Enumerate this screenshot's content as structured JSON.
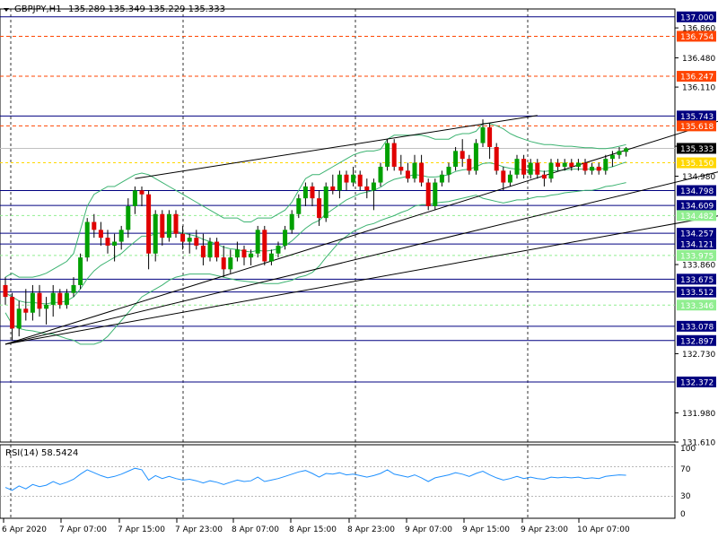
{
  "header": {
    "menu_icon": "triangle-down-icon",
    "symbol": "GBPJPY,H1",
    "ohlc": "135.289 135.349 135.229 135.333"
  },
  "rsi": {
    "label": "RSI(14) 58.5424",
    "period": 14,
    "value": 58.5424,
    "levels": [
      70,
      30
    ],
    "axis_labels": [
      "100",
      "70",
      "30",
      "0"
    ],
    "color": "#1e90ff"
  },
  "chart_data": {
    "type": "candlestick",
    "symbol": "GBPJPY",
    "timeframe": "H1",
    "ylim": [
      131.61,
      137.1
    ],
    "price_axis_labels": [
      "136.860",
      "136.480",
      "136.110",
      "135.360",
      "134.980",
      "133.860",
      "132.730",
      "131.980",
      "131.610"
    ],
    "time_labels": [
      "6 Apr 2020",
      "7 Apr 07:00",
      "7 Apr 15:00",
      "7 Apr 23:00",
      "8 Apr 07:00",
      "8 Apr 15:00",
      "8 Apr 23:00",
      "9 Apr 07:00",
      "9 Apr 15:00",
      "9 Apr 23:00",
      "10 Apr 07:00"
    ],
    "current_price": {
      "value": 135.333,
      "label": "135.333"
    },
    "blue_levels": [
      {
        "value": 137.0,
        "label": "137.000"
      },
      {
        "value": 135.743,
        "label": "135.743"
      },
      {
        "value": 134.798,
        "label": "134.798"
      },
      {
        "value": 134.609,
        "label": "134.609"
      },
      {
        "value": 134.257,
        "label": "134.257"
      },
      {
        "value": 134.121,
        "label": "134.121"
      },
      {
        "value": 133.675,
        "label": "133.675"
      },
      {
        "value": 133.512,
        "label": "133.512"
      },
      {
        "value": 133.078,
        "label": "133.078"
      },
      {
        "value": 132.897,
        "label": "132.897"
      },
      {
        "value": 132.372,
        "label": "132.372"
      }
    ],
    "red_levels": [
      {
        "value": 136.754,
        "label": "136.754"
      },
      {
        "value": 136.247,
        "label": "136.247"
      },
      {
        "value": 135.618,
        "label": "135.618"
      }
    ],
    "yellow_level": {
      "value": 135.15,
      "label": "135.150"
    },
    "green_levels": [
      {
        "value": 134.482,
        "label": "134.482"
      },
      {
        "value": 133.975,
        "label": "133.975"
      },
      {
        "value": 133.346,
        "label": "133.346"
      }
    ],
    "colors": {
      "bull": "#00a000",
      "bear": "#e00000",
      "blue_level": "#000080",
      "red_level": "#ff4500",
      "yellow_level": "#ffd700",
      "green_level": "#90ee90",
      "bollinger": "#3cb371",
      "grid": "#000000"
    },
    "candles": [
      [
        133.6,
        133.7,
        133.35,
        133.45
      ],
      [
        133.45,
        133.5,
        132.9,
        133.05
      ],
      [
        133.05,
        133.4,
        132.95,
        133.3
      ],
      [
        133.3,
        133.55,
        133.15,
        133.25
      ],
      [
        133.25,
        133.6,
        133.15,
        133.5
      ],
      [
        133.5,
        133.6,
        133.2,
        133.3
      ],
      [
        133.3,
        133.45,
        133.1,
        133.35
      ],
      [
        133.35,
        133.6,
        133.2,
        133.5
      ],
      [
        133.5,
        133.55,
        133.3,
        133.35
      ],
      [
        133.35,
        133.55,
        133.3,
        133.5
      ],
      [
        133.5,
        133.7,
        133.45,
        133.6
      ],
      [
        133.6,
        134.0,
        133.55,
        133.95
      ],
      [
        133.95,
        134.45,
        133.9,
        134.4
      ],
      [
        134.4,
        134.5,
        134.2,
        134.3
      ],
      [
        134.3,
        134.4,
        134.1,
        134.2
      ],
      [
        134.2,
        134.3,
        134.0,
        134.1
      ],
      [
        134.1,
        134.25,
        133.9,
        134.15
      ],
      [
        134.15,
        134.35,
        134.05,
        134.3
      ],
      [
        134.3,
        134.7,
        134.2,
        134.6
      ],
      [
        134.6,
        134.85,
        134.5,
        134.8
      ],
      [
        134.8,
        134.85,
        134.6,
        134.75
      ],
      [
        134.75,
        134.8,
        133.8,
        134.0
      ],
      [
        134.0,
        134.55,
        133.9,
        134.5
      ],
      [
        134.5,
        134.55,
        134.1,
        134.2
      ],
      [
        134.2,
        134.55,
        134.15,
        134.5
      ],
      [
        134.5,
        134.55,
        134.2,
        134.25
      ],
      [
        134.25,
        134.35,
        134.05,
        134.15
      ],
      [
        134.15,
        134.25,
        134.0,
        134.2
      ],
      [
        134.2,
        134.3,
        134.05,
        134.1
      ],
      [
        134.1,
        134.25,
        133.85,
        133.95
      ],
      [
        133.95,
        134.2,
        133.9,
        134.15
      ],
      [
        134.15,
        134.2,
        133.9,
        133.95
      ],
      [
        133.95,
        134.1,
        133.7,
        133.8
      ],
      [
        133.8,
        134.05,
        133.75,
        133.95
      ],
      [
        133.95,
        134.15,
        133.9,
        134.05
      ],
      [
        134.05,
        134.1,
        133.85,
        133.95
      ],
      [
        133.95,
        134.05,
        133.85,
        134.0
      ],
      [
        134.0,
        134.35,
        133.95,
        134.3
      ],
      [
        134.3,
        134.35,
        133.85,
        133.9
      ],
      [
        133.9,
        134.05,
        133.85,
        134.0
      ],
      [
        134.0,
        134.15,
        133.95,
        134.1
      ],
      [
        134.1,
        134.35,
        134.05,
        134.3
      ],
      [
        134.3,
        134.55,
        134.25,
        134.5
      ],
      [
        134.5,
        134.75,
        134.45,
        134.7
      ],
      [
        134.7,
        134.9,
        134.6,
        134.85
      ],
      [
        134.85,
        134.9,
        134.6,
        134.7
      ],
      [
        134.7,
        134.8,
        134.35,
        134.45
      ],
      [
        134.45,
        134.9,
        134.4,
        134.85
      ],
      [
        134.85,
        135.0,
        134.75,
        134.8
      ],
      [
        134.8,
        135.05,
        134.7,
        135.0
      ],
      [
        135.0,
        135.05,
        134.8,
        134.9
      ],
      [
        134.9,
        135.1,
        134.85,
        135.0
      ],
      [
        135.0,
        135.05,
        134.8,
        134.85
      ],
      [
        134.85,
        134.95,
        134.7,
        134.8
      ],
      [
        134.8,
        134.95,
        134.55,
        134.9
      ],
      [
        134.9,
        135.15,
        134.85,
        135.1
      ],
      [
        135.1,
        135.45,
        135.05,
        135.4
      ],
      [
        135.4,
        135.45,
        135.05,
        135.1
      ],
      [
        135.1,
        135.25,
        135.0,
        135.05
      ],
      [
        135.05,
        135.15,
        134.9,
        134.95
      ],
      [
        134.95,
        135.25,
        134.9,
        135.15
      ],
      [
        135.15,
        135.25,
        134.85,
        134.9
      ],
      [
        134.9,
        134.95,
        134.55,
        134.6
      ],
      [
        134.6,
        134.95,
        134.55,
        134.9
      ],
      [
        134.9,
        135.05,
        134.85,
        135.0
      ],
      [
        135.0,
        135.15,
        134.9,
        135.1
      ],
      [
        135.1,
        135.35,
        135.05,
        135.3
      ],
      [
        135.3,
        135.45,
        135.1,
        135.2
      ],
      [
        135.2,
        135.25,
        135.0,
        135.05
      ],
      [
        135.05,
        135.45,
        135.0,
        135.4
      ],
      [
        135.4,
        135.7,
        135.35,
        135.6
      ],
      [
        135.6,
        135.65,
        135.2,
        135.35
      ],
      [
        135.35,
        135.4,
        135.0,
        135.05
      ],
      [
        135.05,
        135.1,
        134.8,
        134.9
      ],
      [
        134.9,
        135.05,
        134.85,
        135.0
      ],
      [
        135.0,
        135.25,
        134.95,
        135.2
      ],
      [
        135.2,
        135.25,
        134.95,
        135.0
      ],
      [
        135.0,
        135.2,
        134.95,
        135.15
      ],
      [
        135.15,
        135.2,
        134.95,
        135.0
      ],
      [
        135.0,
        135.05,
        134.85,
        134.95
      ],
      [
        134.95,
        135.2,
        134.9,
        135.15
      ],
      [
        135.15,
        135.2,
        135.05,
        135.1
      ],
      [
        135.1,
        135.2,
        135.05,
        135.15
      ],
      [
        135.15,
        135.2,
        135.05,
        135.1
      ],
      [
        135.1,
        135.2,
        135.05,
        135.15
      ],
      [
        135.15,
        135.2,
        135.0,
        135.05
      ],
      [
        135.05,
        135.15,
        135.0,
        135.1
      ],
      [
        135.1,
        135.15,
        135.0,
        135.05
      ],
      [
        135.05,
        135.25,
        135.0,
        135.2
      ],
      [
        135.2,
        135.3,
        135.1,
        135.25
      ],
      [
        135.25,
        135.35,
        135.2,
        135.3
      ],
      [
        135.289,
        135.349,
        135.229,
        135.333
      ]
    ],
    "rsi_values": [
      42,
      38,
      44,
      40,
      46,
      43,
      45,
      50,
      46,
      49,
      53,
      60,
      66,
      62,
      58,
      55,
      57,
      60,
      64,
      68,
      66,
      52,
      58,
      54,
      57,
      54,
      52,
      53,
      51,
      48,
      51,
      49,
      46,
      49,
      52,
      50,
      51,
      56,
      50,
      52,
      54,
      57,
      60,
      63,
      65,
      61,
      56,
      61,
      60,
      62,
      59,
      60,
      58,
      56,
      58,
      61,
      66,
      60,
      58,
      56,
      59,
      55,
      50,
      55,
      57,
      59,
      62,
      60,
      57,
      61,
      64,
      59,
      55,
      52,
      54,
      57,
      54,
      56,
      54,
      53,
      56,
      55,
      56,
      55,
      56,
      54,
      55,
      54,
      57,
      58,
      59,
      58.5424
    ],
    "bollinger": {
      "upper": [
        133.7,
        133.75,
        133.7,
        133.7,
        133.7,
        133.72,
        133.75,
        133.8,
        133.85,
        133.9,
        134.0,
        134.3,
        134.6,
        134.75,
        134.8,
        134.85,
        134.85,
        134.9,
        134.95,
        135.0,
        135.02,
        135.0,
        134.95,
        134.9,
        134.85,
        134.8,
        134.75,
        134.7,
        134.65,
        134.6,
        134.55,
        134.5,
        134.45,
        134.45,
        134.45,
        134.4,
        134.4,
        134.45,
        134.45,
        134.45,
        134.5,
        134.55,
        134.65,
        134.8,
        134.95,
        135.0,
        135.0,
        135.05,
        135.1,
        135.15,
        135.2,
        135.25,
        135.28,
        135.3,
        135.3,
        135.32,
        135.45,
        135.5,
        135.5,
        135.5,
        135.5,
        135.5,
        135.48,
        135.45,
        135.45,
        135.45,
        135.5,
        135.52,
        135.52,
        135.55,
        135.65,
        135.65,
        135.62,
        135.58,
        135.52,
        135.48,
        135.45,
        135.42,
        135.4,
        135.38,
        135.38,
        135.37,
        135.36,
        135.36,
        135.35,
        135.34,
        135.34,
        135.33,
        135.33,
        135.34,
        135.36,
        135.38
      ],
      "middle": [
        133.5,
        133.45,
        133.4,
        133.38,
        133.38,
        133.37,
        133.36,
        133.38,
        133.38,
        133.4,
        133.45,
        133.55,
        133.68,
        133.78,
        133.85,
        133.9,
        133.95,
        134.0,
        134.08,
        134.15,
        134.22,
        134.22,
        134.25,
        134.26,
        134.28,
        134.28,
        134.26,
        134.24,
        134.22,
        134.18,
        134.15,
        134.12,
        134.08,
        134.06,
        134.05,
        134.03,
        134.02,
        134.04,
        134.03,
        134.04,
        134.06,
        134.1,
        134.16,
        134.24,
        134.32,
        134.38,
        134.42,
        134.5,
        134.56,
        134.62,
        134.68,
        134.72,
        134.76,
        134.78,
        134.8,
        134.84,
        134.9,
        134.94,
        134.96,
        134.98,
        135.0,
        134.99,
        134.97,
        134.97,
        134.98,
        135.0,
        135.04,
        135.06,
        135.07,
        135.1,
        135.14,
        135.15,
        135.13,
        135.1,
        135.08,
        135.07,
        135.06,
        135.06,
        135.05,
        135.04,
        135.05,
        135.05,
        135.06,
        135.07,
        135.07,
        135.07,
        135.07,
        135.07,
        135.08,
        135.1,
        135.13,
        135.16
      ],
      "lower": [
        133.25,
        133.1,
        133.05,
        133.03,
        133.02,
        133.0,
        132.98,
        132.98,
        132.95,
        132.92,
        132.9,
        132.85,
        132.85,
        132.85,
        132.88,
        132.95,
        133.05,
        133.15,
        133.25,
        133.35,
        133.45,
        133.5,
        133.55,
        133.6,
        133.66,
        133.7,
        133.72,
        133.74,
        133.74,
        133.74,
        133.74,
        133.72,
        133.7,
        133.68,
        133.66,
        133.65,
        133.64,
        133.63,
        133.62,
        133.62,
        133.62,
        133.64,
        133.66,
        133.7,
        133.72,
        133.76,
        133.84,
        133.95,
        134.05,
        134.15,
        134.22,
        134.28,
        134.32,
        134.36,
        134.38,
        134.42,
        134.45,
        134.48,
        134.52,
        134.55,
        134.6,
        134.62,
        134.62,
        134.64,
        134.65,
        134.66,
        134.68,
        134.7,
        134.72,
        134.74,
        134.7,
        134.68,
        134.66,
        134.64,
        134.66,
        134.68,
        134.68,
        134.7,
        134.72,
        134.72,
        134.74,
        134.75,
        134.77,
        134.78,
        134.79,
        134.8,
        134.8,
        134.82,
        134.85,
        134.86,
        134.88,
        134.9
      ]
    },
    "trendlines": [
      {
        "from": [
          0,
          132.85
        ],
        "to": [
          122,
          136.15
        ],
        "color": "#000000"
      },
      {
        "from": [
          0,
          132.85
        ],
        "to": [
          122,
          134.75
        ],
        "color": "#000000"
      },
      {
        "from": [
          0,
          132.85
        ],
        "to": [
          122,
          135.4
        ],
        "color": "#000000"
      },
      {
        "from": [
          19,
          134.95
        ],
        "to": [
          78,
          135.75
        ],
        "color": "#000000"
      }
    ]
  }
}
